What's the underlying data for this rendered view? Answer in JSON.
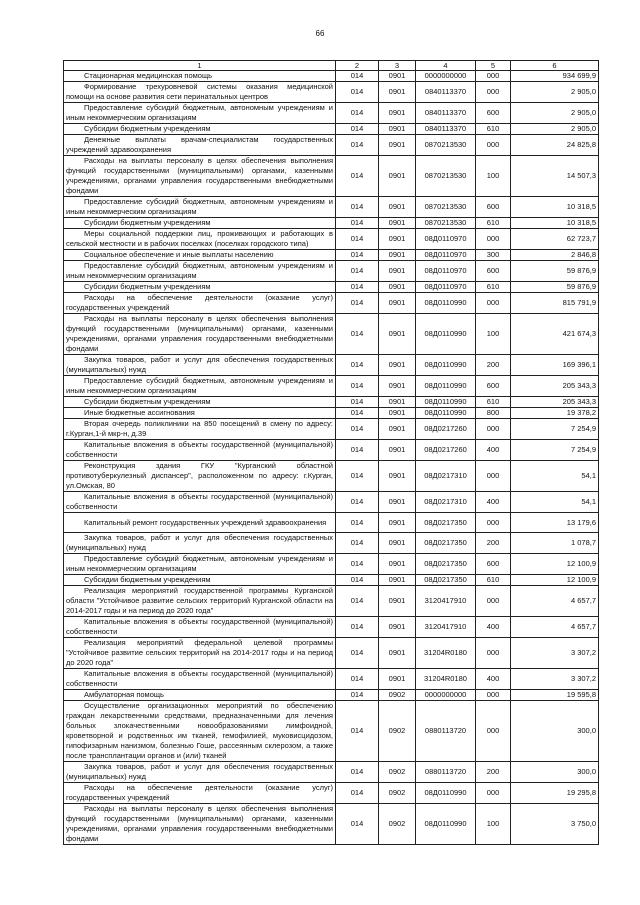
{
  "page_number": "66",
  "columns": [
    "1",
    "2",
    "3",
    "4",
    "5",
    "6"
  ],
  "rows": [
    [
      "Стационарная медицинская помощь",
      "014",
      "0901",
      "0000000000",
      "000",
      "934 699,9"
    ],
    [
      "Формирование трехуровневой системы оказания медицинской помощи на основе развития сети перинатальных центров",
      "014",
      "0901",
      "0840113370",
      "000",
      "2 905,0"
    ],
    [
      "Предоставление субсидий бюджетным, автономным учреждениям и иным некоммерческим организациям",
      "014",
      "0901",
      "0840113370",
      "600",
      "2 905,0"
    ],
    [
      "Субсидии бюджетным учреждениям",
      "014",
      "0901",
      "0840113370",
      "610",
      "2 905,0"
    ],
    [
      "Денежные выплаты врачам-специалистам государственных учреждений здравоохранения",
      "014",
      "0901",
      "0870213530",
      "000",
      "24 825,8"
    ],
    [
      "Расходы на выплаты персоналу в целях обеспечения выполнения функций государственными (муниципальными) органами, казенными учреждениями, органами управления государственными внебюджетными фондами",
      "014",
      "0901",
      "0870213530",
      "100",
      "14 507,3"
    ],
    [
      "Предоставление субсидий бюджетным, автономным учреждениям и иным некоммерческим организациям",
      "014",
      "0901",
      "0870213530",
      "600",
      "10 318,5"
    ],
    [
      "Субсидии бюджетным учреждениям",
      "014",
      "0901",
      "0870213530",
      "610",
      "10 318,5"
    ],
    [
      "Меры социальной поддержки лиц, проживающих и работающих в сельской местности и в рабочих поселках (поселках городского типа)",
      "014",
      "0901",
      "08Д0110970",
      "000",
      "62 723,7"
    ],
    [
      "Социальное обеспечение и иные выплаты населению",
      "014",
      "0901",
      "08Д0110970",
      "300",
      "2 846,8"
    ],
    [
      "Предоставление субсидий бюджетным, автономным учреждениям и иным некоммерческим организациям",
      "014",
      "0901",
      "08Д0110970",
      "600",
      "59 876,9"
    ],
    [
      "Субсидии бюджетным учреждениям",
      "014",
      "0901",
      "08Д0110970",
      "610",
      "59 876,9"
    ],
    [
      "Расходы на обеспечение деятельности (оказание услуг) государственных учреждений",
      "014",
      "0901",
      "08Д0110990",
      "000",
      "815 791,9"
    ],
    [
      "Расходы на выплаты персоналу в целях обеспечения выполнения функций государственными (муниципальными) органами, казенными учреждениями, органами управления государственными внебюджетными фондами",
      "014",
      "0901",
      "08Д0110990",
      "100",
      "421 674,3"
    ],
    [
      "Закупка товаров, работ и услуг для обеспечения государственных (муниципальных) нужд",
      "014",
      "0901",
      "08Д0110990",
      "200",
      "169 396,1"
    ],
    [
      "Предоставление субсидий бюджетным, автономным учреждениям и иным некоммерческим организациям",
      "014",
      "0901",
      "08Д0110990",
      "600",
      "205 343,3"
    ],
    [
      "Субсидии бюджетным учреждениям",
      "014",
      "0901",
      "08Д0110990",
      "610",
      "205 343,3"
    ],
    [
      "Иные бюджетные ассигнования",
      "014",
      "0901",
      "08Д0110990",
      "800",
      "19 378,2"
    ],
    [
      "Вторая очередь поликлиники на 850 посещений в смену по адресу: г.Курган,1-й мкр-н, д.39",
      "014",
      "0901",
      "08Д0217260",
      "000",
      "7 254,9"
    ],
    [
      "Капитальные вложения в объекты государственной (муниципальной) собственности",
      "014",
      "0901",
      "08Д0217260",
      "400",
      "7 254,9"
    ],
    [
      "Реконструкция здания ГКУ \"Курганский областной противотуберкулезный диспансер\", расположенном по адресу: г.Курган, ул.Омская, 80",
      "014",
      "0901",
      "08Д0217310",
      "000",
      "54,1"
    ],
    [
      "Капитальные вложения в объекты государственной (муниципальной) собственности",
      "014",
      "0901",
      "08Д0217310",
      "400",
      "54,1"
    ],
    [
      "Капитальный ремонт государственных учреждений здравоохранения",
      "014",
      "0901",
      "08Д0217350",
      "000",
      "13 179,6"
    ],
    [
      "Закупка товаров, работ и услуг для обеспечения государственных (муниципальных) нужд",
      "014",
      "0901",
      "08Д0217350",
      "200",
      "1 078,7"
    ],
    [
      "Предоставление субсидий бюджетным, автономным учреждениям и иным некоммерческим организациям",
      "014",
      "0901",
      "08Д0217350",
      "600",
      "12 100,9"
    ],
    [
      "Субсидии бюджетным учреждениям",
      "014",
      "0901",
      "08Д0217350",
      "610",
      "12 100,9"
    ],
    [
      "Реализация мероприятий государственной программы Курганской области \"Устойчивое развитие сельских территорий Курганской области на 2014-2017 годы и на период до 2020 года\"",
      "014",
      "0901",
      "3120417910",
      "000",
      "4 657,7"
    ],
    [
      "Капитальные вложения в объекты государственной (муниципальной) собственности",
      "014",
      "0901",
      "3120417910",
      "400",
      "4 657,7"
    ],
    [
      "Реализация мероприятий федеральной целевой программы \"Устойчивое развитие сельских территорий на 2014-2017 годы и на период до 2020 года\"",
      "014",
      "0901",
      "31204R0180",
      "000",
      "3 307,2"
    ],
    [
      "Капитальные вложения в объекты государственной (муниципальной) собственности",
      "014",
      "0901",
      "31204R0180",
      "400",
      "3 307,2"
    ],
    [
      "Амбулаторная помощь",
      "014",
      "0902",
      "0000000000",
      "000",
      "19 595,8"
    ],
    [
      "Осуществление организационных мероприятий по обеспечению граждан лекарственными средствами, предназначенными для лечения больных злокачественными новообразованиями лимфоидной, кроветворной и родственных им тканей, гемофилией, муковисцидозом, гипофизарным нанизмом, болезнью Гоше, рассеянным склерозом, а также после трансплантации органов и (или) тканей",
      "014",
      "0902",
      "0880113720",
      "000",
      "300,0"
    ],
    [
      "Закупка товаров, работ и услуг для обеспечения государственных (муниципальных) нужд",
      "014",
      "0902",
      "0880113720",
      "200",
      "300,0"
    ],
    [
      "Расходы на обеспечение деятельности (оказание услуг) государственных учреждений",
      "014",
      "0902",
      "08Д0110990",
      "000",
      "19 295,8"
    ],
    [
      "Расходы на выплаты персоналу в целях обеспечения выполнения функций государственными (муниципальными) органами, казенными учреждениями, органами управления государственными внебюджетными фондами",
      "014",
      "0902",
      "08Д0110990",
      "100",
      "3 750,0"
    ]
  ]
}
